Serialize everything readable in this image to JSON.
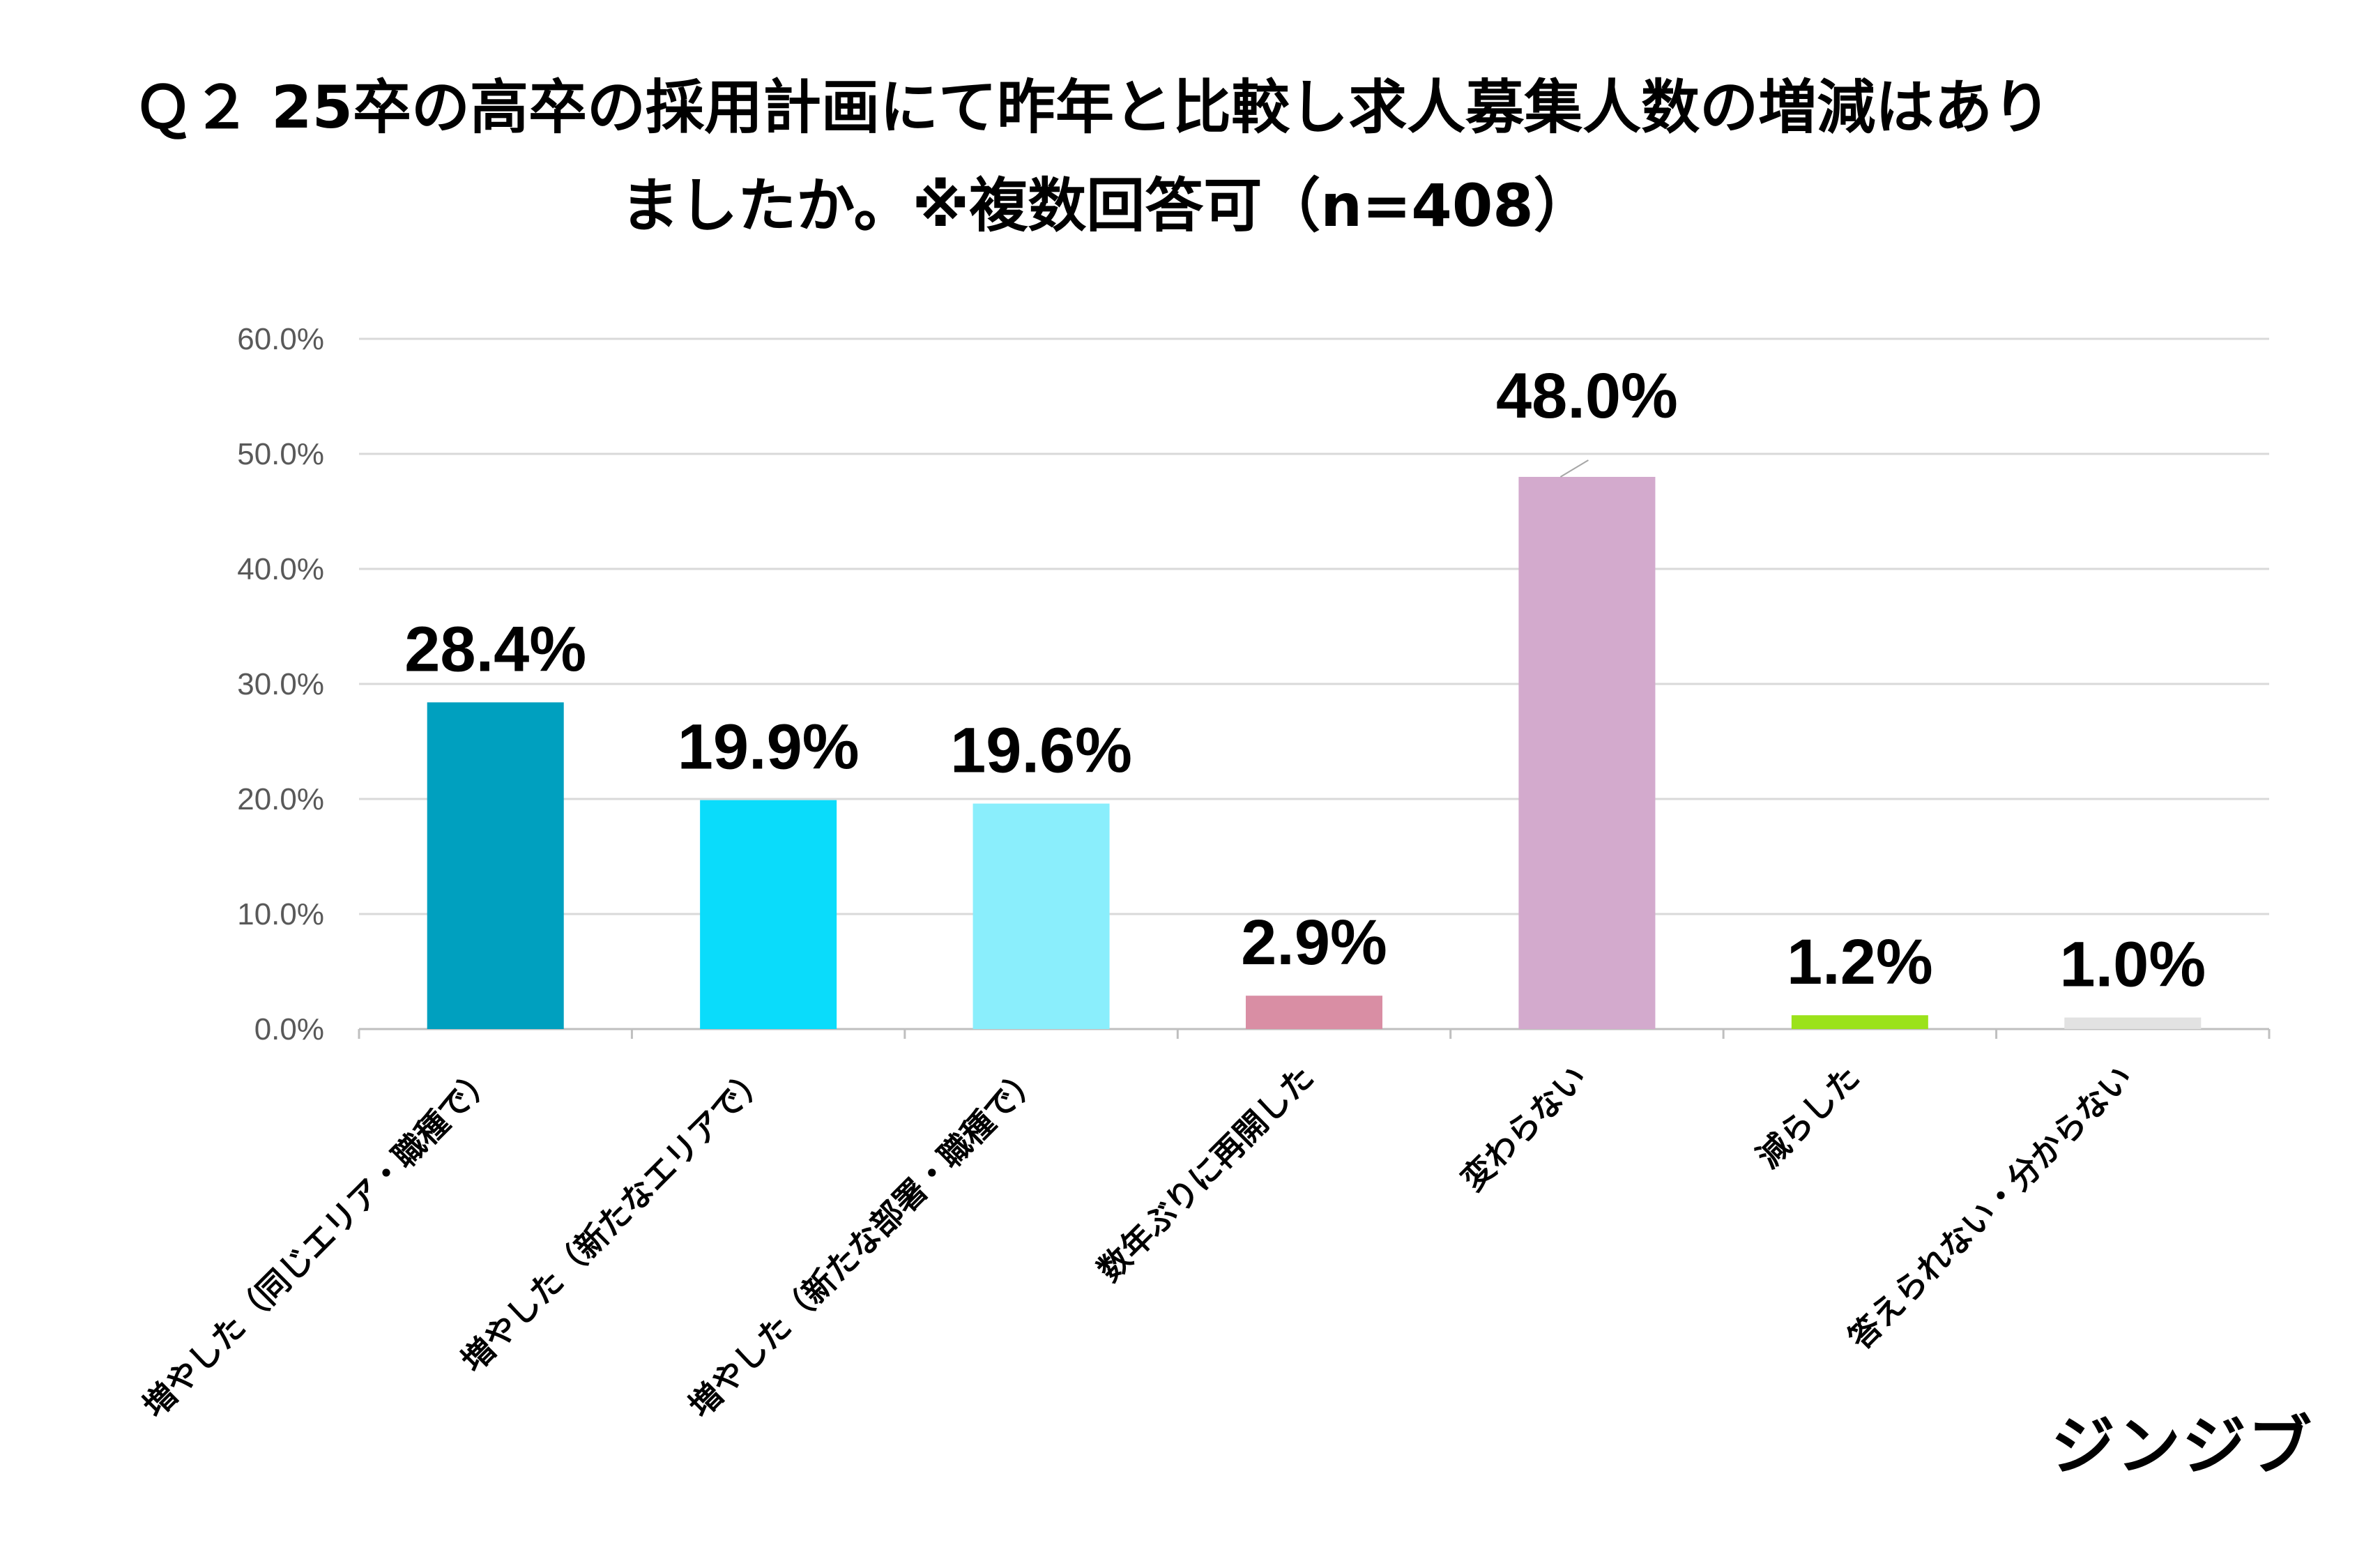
{
  "title_line1": "Ｑ２ 25卒の高卒の採用計画にて昨年と比較し求人募集人数の増減はあり",
  "title_line2": "ましたか。※複数回答可（n=408）",
  "brand": "ジンジブ",
  "chart_data": {
    "type": "bar",
    "title": "Ｑ２ 25卒の高卒の採用計画にて昨年と比較し求人募集人数の増減はありましたか。※複数回答可（n=408）",
    "categories": [
      "増やした（同じエリア・職種で）",
      "増やした（新たなエリアで）",
      "増やした（新たな部署・職種で）",
      "数年ぶりに再開した",
      "変わらない",
      "減らした",
      "答えられない・分からない"
    ],
    "values": [
      28.4,
      19.9,
      19.6,
      2.9,
      48.0,
      1.2,
      1.0
    ],
    "value_labels": [
      "28.4%",
      "19.9%",
      "19.6%",
      "2.9%",
      "48.0%",
      "1.2%",
      "1.0%"
    ],
    "colors": [
      "#00a0bf",
      "#0adcfb",
      "#8aeefc",
      "#d98ea4",
      "#d3aacd",
      "#9be21a",
      "#e2e2e2"
    ],
    "ylim": [
      0,
      60
    ],
    "yticks": [
      0,
      10,
      20,
      30,
      40,
      50,
      60
    ],
    "ytick_labels": [
      "0.0%",
      "10.0%",
      "20.0%",
      "30.0%",
      "40.0%",
      "50.0%",
      "60.0%"
    ],
    "grid": true,
    "xlabel": "",
    "ylabel": ""
  }
}
